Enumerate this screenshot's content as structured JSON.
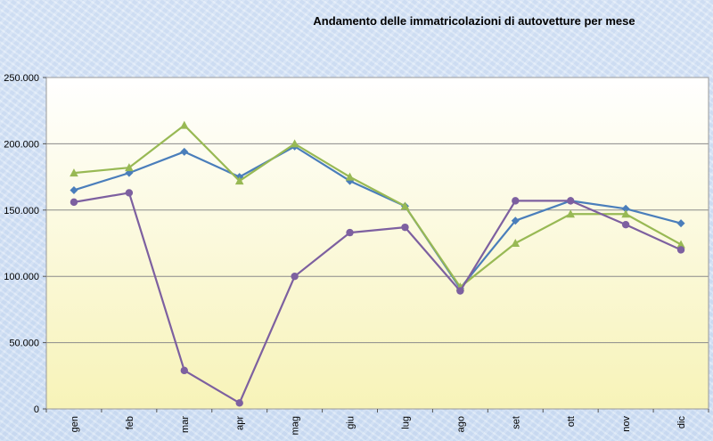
{
  "chart_data": {
    "type": "line",
    "title": "Andamento delle immatricolazioni di autovetture per mese",
    "xlabel": "",
    "ylabel": "",
    "categories": [
      "gen",
      "feb",
      "mar",
      "apr",
      "mag",
      "giu",
      "lug",
      "ago",
      "set",
      "ott",
      "nov",
      "dic"
    ],
    "ylim": [
      0,
      250000
    ],
    "yticks": [
      0,
      50000,
      100000,
      150000,
      200000,
      250000
    ],
    "ytick_labels": [
      "0",
      "50.000",
      "100.000",
      "150.000",
      "200.000",
      "250.000"
    ],
    "grid": "horizontal",
    "legend": "none",
    "series": [
      {
        "color": "#4a7ebb",
        "marker": "diamond",
        "values": [
          165000,
          178000,
          194000,
          175000,
          198000,
          172000,
          153000,
          91000,
          142000,
          157000,
          151000,
          140000
        ]
      },
      {
        "color": "#98b954",
        "marker": "triangle",
        "values": [
          178000,
          182000,
          214000,
          172000,
          200000,
          175000,
          153000,
          92000,
          125000,
          147000,
          147000,
          124000
        ]
      },
      {
        "color": "#7d60a0",
        "marker": "circle",
        "values": [
          156000,
          163000,
          29000,
          4500,
          100000,
          133000,
          137000,
          89000,
          157000,
          157000,
          139000,
          120000
        ]
      }
    ]
  }
}
